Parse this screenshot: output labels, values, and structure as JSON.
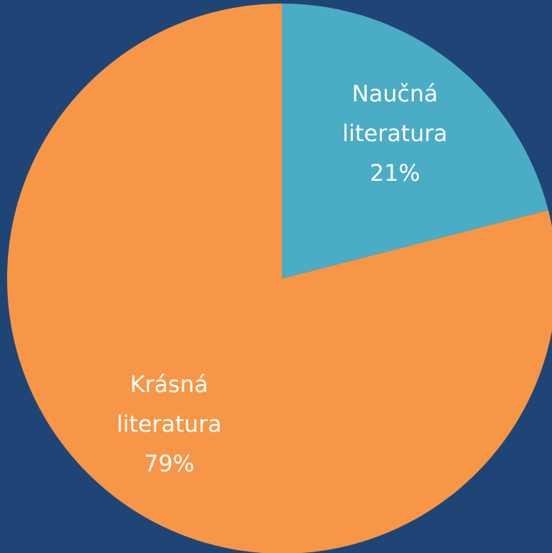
{
  "chart_data": {
    "type": "pie",
    "categories": [
      "Naučná literatura",
      "Krásná literatura"
    ],
    "values": [
      21,
      79
    ],
    "value_labels": [
      "21%",
      "79%"
    ],
    "colors": [
      "#4bacc6",
      "#f79646"
    ],
    "background": "#1f4577"
  }
}
